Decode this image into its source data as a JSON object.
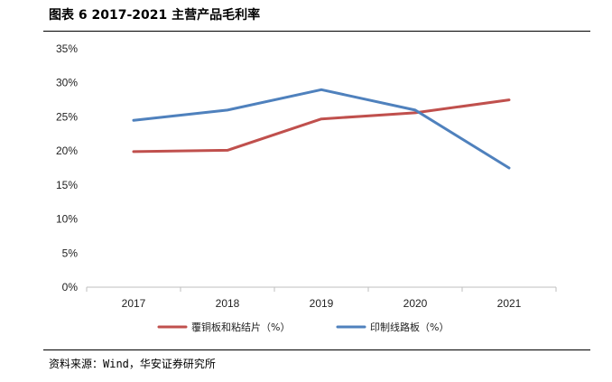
{
  "title": "图表 6 2017-2021 主营产品毛利率",
  "source": "资料来源：Wind，华安证券研究所",
  "chart_data": {
    "type": "line",
    "x": [
      "2017",
      "2018",
      "2019",
      "2020",
      "2021"
    ],
    "y_ticks": [
      "0%",
      "5%",
      "10%",
      "15%",
      "20%",
      "25%",
      "30%",
      "35%"
    ],
    "ylim": [
      0,
      35
    ],
    "y_unit": "%",
    "grid": false,
    "legend_position": "bottom",
    "series": [
      {
        "name": "覆铜板和粘结片（%）",
        "color": "#c0504d",
        "values": [
          19.9,
          20.1,
          24.7,
          25.6,
          27.5
        ]
      },
      {
        "name": "印制线路板（%）",
        "color": "#4f81bd",
        "values": [
          24.5,
          26.0,
          29.0,
          26.0,
          17.5
        ]
      }
    ]
  }
}
